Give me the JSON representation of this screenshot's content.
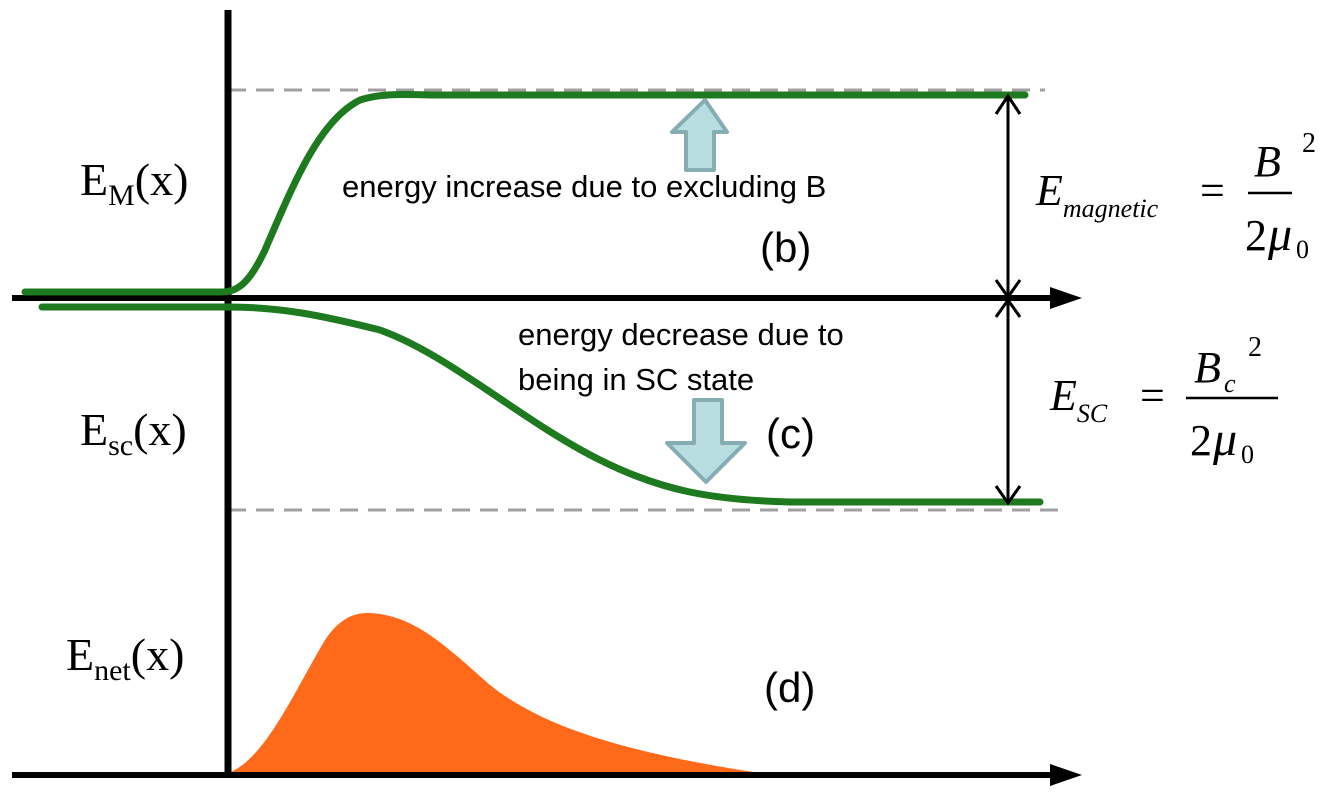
{
  "labels": {
    "em_main": "E",
    "em_sub": "M",
    "em_arg": "(x)",
    "esc_main": "E",
    "esc_sub": "sc",
    "esc_arg": "(x)",
    "enet_main": "E",
    "enet_sub": "net",
    "enet_arg": "(x)"
  },
  "annotations": {
    "increase": "energy increase due to excluding B",
    "decrease_line1": "energy decrease due to",
    "decrease_line2": "being in SC state",
    "panel_b": "(b)",
    "panel_c": "(c)",
    "panel_d": "(d)"
  },
  "formulas": {
    "magnetic": {
      "lhs_main": "E",
      "lhs_sub": "magnetic",
      "equals": "=",
      "num_symbol": "B",
      "num_exp": "2",
      "den_coef": "2",
      "den_symbol": "μ",
      "den_sub": "0"
    },
    "sc": {
      "lhs_main": "E",
      "lhs_sub": "SC",
      "equals": "=",
      "num_symbol": "B",
      "num_sub": "c",
      "num_exp": "2",
      "den_coef": "2",
      "den_symbol": "μ",
      "den_sub": "0"
    }
  },
  "colors": {
    "curve_green": "#1e7a1e",
    "fill_orange": "#ff6a1a",
    "arrow_fill": "#b8dde0",
    "arrow_stroke": "#86aeb2",
    "dashed": "#a0a0a0",
    "axis": "#000000"
  }
}
